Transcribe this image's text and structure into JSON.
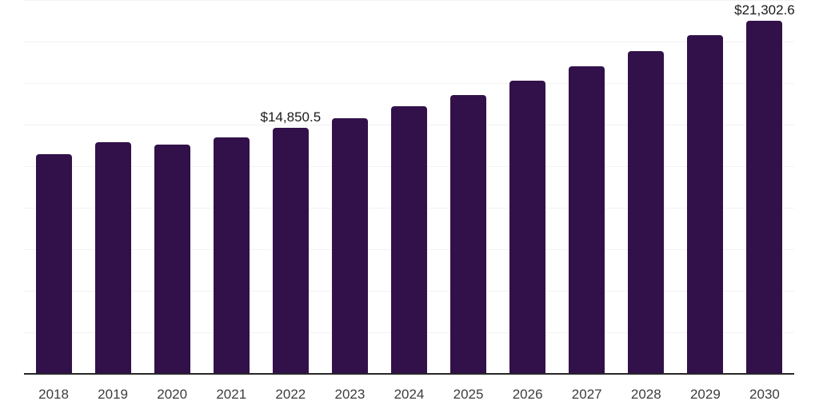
{
  "chart_data": {
    "type": "bar",
    "title": "",
    "xlabel": "",
    "ylabel": "",
    "categories": [
      "2018",
      "2019",
      "2020",
      "2021",
      "2022",
      "2023",
      "2024",
      "2025",
      "2026",
      "2027",
      "2028",
      "2029",
      "2030"
    ],
    "values": [
      13270,
      13990,
      13850,
      14290,
      14850.5,
      15430,
      16160,
      16830,
      17700,
      18560,
      19470,
      20440,
      21302.6
    ],
    "data_labels": [
      {
        "category": "2022",
        "text": "$14,850.5"
      },
      {
        "category": "2030",
        "text": "$21,302.6"
      }
    ],
    "ylim": [
      0,
      22500
    ],
    "gridline_step": 2500,
    "grid": true,
    "legend": false,
    "colors": {
      "bar": "#32114A",
      "gridline": "#F2F2F2",
      "axis_line": "#262626",
      "tick_label": "#3D3D3D",
      "data_label": "#1A1A1A",
      "background": "#FFFFFF"
    }
  }
}
